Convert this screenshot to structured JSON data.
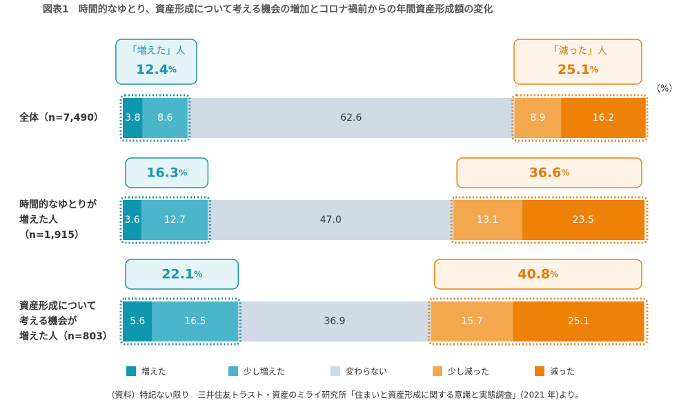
{
  "chart_data": {
    "type": "stacked-bar-horizontal",
    "title": "図表1　時間的なゆとり、資産形成について考える機会の増加とコロナ禍前からの年間資産形成額の変化",
    "unit_label": "（%）",
    "categories": [
      [
        "全体（n=7,490）"
      ],
      [
        "時間的なゆとりが",
        "増えた人",
        "（n=1,915）"
      ],
      [
        "資産形成について",
        "考える機会が",
        "増えた人（n=803）"
      ]
    ],
    "xlim": [
      0,
      100
    ],
    "series": [
      {
        "name": "増えた",
        "color": "#0e97ae",
        "values": [
          3.8,
          3.6,
          5.6
        ]
      },
      {
        "name": "少し増えた",
        "color": "#4bb6ca",
        "values": [
          8.6,
          12.7,
          16.5
        ]
      },
      {
        "name": "変わらない",
        "color": "#d0dbe5",
        "values": [
          62.6,
          47.0,
          36.9
        ],
        "value_labels": [
          "62.6",
          "47.0",
          "36.9"
        ]
      },
      {
        "name": "少し減った",
        "color": "#f3a84d",
        "values": [
          8.9,
          13.1,
          15.7
        ]
      },
      {
        "name": "減った",
        "color": "#ee8108",
        "values": [
          16.2,
          23.5,
          25.1
        ]
      }
    ],
    "increase_heading": "「増えた」人",
    "increase_totals": [
      "12.4%",
      "16.3%",
      "22.1%"
    ],
    "decrease_heading": "「減った」人",
    "decrease_totals": [
      "25.1%",
      "36.6%",
      "40.8%"
    ],
    "source": "（資料）特記ない限り　三井住友トラスト・資産のミライ研究所「住まいと資産形成に関する意識と実態調査」(2021 年)より。"
  }
}
